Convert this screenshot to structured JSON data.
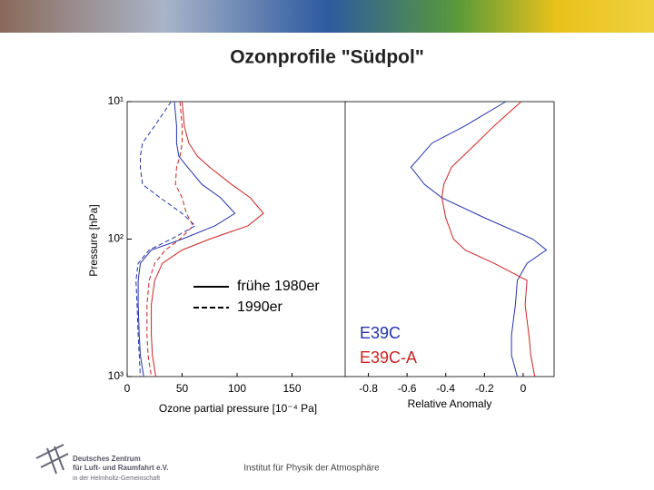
{
  "slide": {
    "title": "Ozonprofile \"Südpol\"",
    "footer": "Institut für Physik der Atmosphäre",
    "logo": [
      "Deutsches Zentrum",
      "für Luft- und Raumfahrt e.V.",
      "in der Helmholtz-Gemeinschaft"
    ]
  },
  "chart_data": [
    {
      "type": "line",
      "y_log": true,
      "y_inverted": true,
      "xlabel": "Ozone partial pressure [10⁻⁴ Pa]",
      "ylabel": "Pressure [hPa]",
      "xlim": [
        0,
        200
      ],
      "xticks": [
        0,
        50,
        100,
        150
      ],
      "ylim": [
        10,
        1000
      ],
      "yticks": [
        {
          "value": 10,
          "label": "10¹"
        },
        {
          "value": 100,
          "label": "10²"
        },
        {
          "value": 1000,
          "label": "10³"
        }
      ],
      "pressure": [
        10,
        15,
        20,
        25,
        30,
        40,
        50,
        65,
        80,
        100,
        120,
        150,
        200,
        300,
        500,
        700,
        1000
      ],
      "series": [
        {
          "color": "#2233aa",
          "dash": false,
          "values": [
            43,
            45,
            45,
            47,
            55,
            68,
            85,
            98,
            80,
            50,
            22,
            12,
            10,
            10,
            11,
            12,
            15
          ]
        },
        {
          "color": "#cc2222",
          "dash": false,
          "values": [
            50,
            52,
            56,
            64,
            75,
            95,
            112,
            124,
            110,
            75,
            50,
            32,
            25,
            22,
            22,
            23,
            26
          ]
        },
        {
          "color": "#2233aa",
          "dash": true,
          "values": [
            40,
            25,
            14,
            12,
            12,
            14,
            30,
            50,
            62,
            40,
            20,
            10,
            8,
            9,
            10,
            11,
            12
          ]
        },
        {
          "color": "#cc2222",
          "dash": true,
          "values": [
            48,
            50,
            50,
            48,
            45,
            44,
            50,
            54,
            60,
            48,
            35,
            25,
            20,
            18,
            18,
            19,
            22
          ]
        }
      ],
      "legend_styles": [
        {
          "label": "frühe 1980er",
          "dash": false
        },
        {
          "label": "1990er",
          "dash": true
        }
      ]
    },
    {
      "type": "line",
      "y_log": true,
      "y_inverted": true,
      "xlabel": "Relative Anomaly",
      "xlim": [
        -0.92,
        0.16
      ],
      "xticks": [
        -0.8,
        -0.6,
        -0.4,
        -0.2,
        0
      ],
      "ylim": [
        10,
        1000
      ],
      "pressure": [
        10,
        15,
        20,
        30,
        40,
        50,
        70,
        100,
        120,
        150,
        200,
        300,
        500,
        700,
        1000
      ],
      "series": [
        {
          "name": "E39C",
          "color": "#2233aa",
          "values": [
            -0.09,
            -0.3,
            -0.47,
            -0.58,
            -0.51,
            -0.42,
            -0.2,
            0.05,
            0.12,
            0.02,
            -0.03,
            -0.04,
            -0.06,
            -0.06,
            -0.03
          ]
        },
        {
          "name": "E39C-A",
          "color": "#cc2222",
          "values": [
            -0.01,
            -0.15,
            -0.24,
            -0.37,
            -0.41,
            -0.42,
            -0.4,
            -0.36,
            -0.3,
            -0.15,
            0.02,
            0.01,
            0.03,
            0.04,
            0.06
          ]
        }
      ]
    }
  ]
}
